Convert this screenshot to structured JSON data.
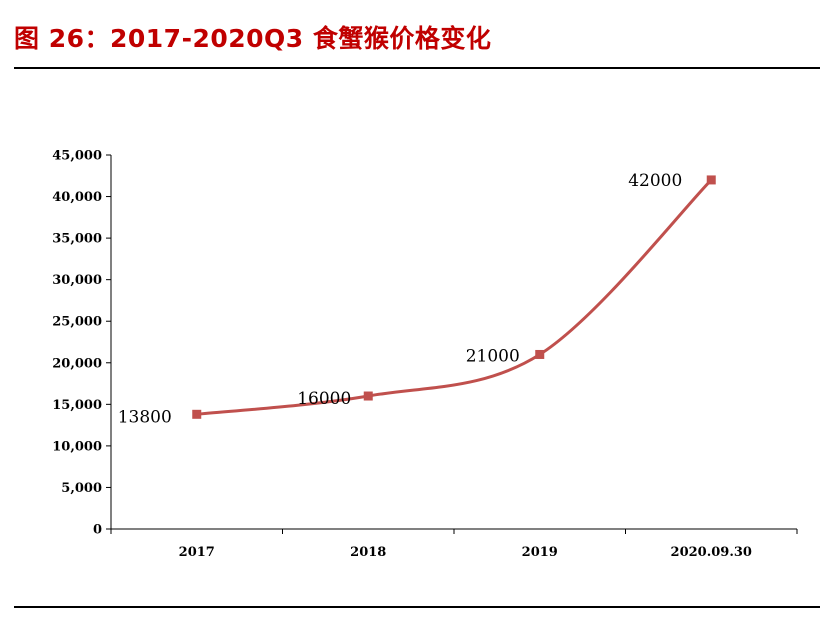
{
  "header": {
    "title": "图 26：2017-2020Q3 食蟹猴价格变化"
  },
  "colors": {
    "title": "#c00000",
    "series": "#c0504d",
    "axis": "#000000"
  },
  "chart_data": {
    "type": "line",
    "categories": [
      "2017",
      "2018",
      "2019",
      "2020.09.30"
    ],
    "series": [
      {
        "values": [
          13800,
          16000,
          21000,
          42000
        ],
        "data_labels": [
          "13800",
          "16000",
          "21000",
          "42000"
        ],
        "marker": "square",
        "smooth": true
      }
    ],
    "ylim": [
      0,
      45000
    ],
    "yticks": [
      0,
      5000,
      10000,
      15000,
      20000,
      25000,
      30000,
      35000,
      40000,
      45000
    ],
    "ytick_labels": [
      "0",
      "5,000",
      "10,000",
      "15,000",
      "20,000",
      "25,000",
      "30,000",
      "35,000",
      "40,000",
      "45,000"
    ],
    "grid": false,
    "legend": "none"
  }
}
